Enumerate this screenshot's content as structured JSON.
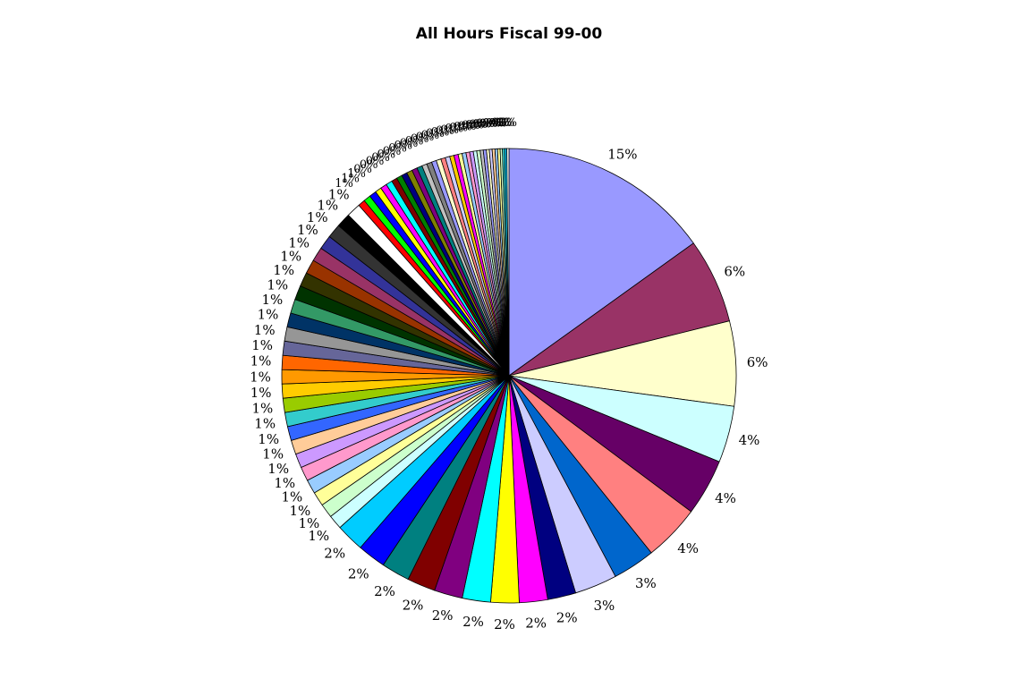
{
  "chart_data": {
    "type": "pie",
    "title": "All Hours Fiscal 99-00",
    "legend": "none",
    "slices": [
      {
        "value": 15,
        "label": "15%",
        "color": "#9999ff"
      },
      {
        "value": 6,
        "label": "6%",
        "color": "#993366"
      },
      {
        "value": 6,
        "label": "6%",
        "color": "#ffffcc"
      },
      {
        "value": 4,
        "label": "4%",
        "color": "#ccffff"
      },
      {
        "value": 4,
        "label": "4%",
        "color": "#660066"
      },
      {
        "value": 4,
        "label": "4%",
        "color": "#ff8080"
      },
      {
        "value": 3,
        "label": "3%",
        "color": "#0066cc"
      },
      {
        "value": 3,
        "label": "3%",
        "color": "#ccccff"
      },
      {
        "value": 2,
        "label": "2%",
        "color": "#000080"
      },
      {
        "value": 2,
        "label": "2%",
        "color": "#ff00ff"
      },
      {
        "value": 2,
        "label": "2%",
        "color": "#ffff00"
      },
      {
        "value": 2,
        "label": "2%",
        "color": "#00ffff"
      },
      {
        "value": 2,
        "label": "2%",
        "color": "#800080"
      },
      {
        "value": 2,
        "label": "2%",
        "color": "#800000"
      },
      {
        "value": 2,
        "label": "2%",
        "color": "#008080"
      },
      {
        "value": 2,
        "label": "2%",
        "color": "#0000ff"
      },
      {
        "value": 2,
        "label": "2%",
        "color": "#00ccff"
      },
      {
        "value": 1,
        "label": "1%",
        "color": "#ccffff"
      },
      {
        "value": 1,
        "label": "1%",
        "color": "#ccffcc"
      },
      {
        "value": 1,
        "label": "1%",
        "color": "#ffff99"
      },
      {
        "value": 1,
        "label": "1%",
        "color": "#99ccff"
      },
      {
        "value": 1,
        "label": "1%",
        "color": "#ff99cc"
      },
      {
        "value": 1,
        "label": "1%",
        "color": "#cc99ff"
      },
      {
        "value": 1,
        "label": "1%",
        "color": "#ffcc99"
      },
      {
        "value": 1,
        "label": "1%",
        "color": "#3366ff"
      },
      {
        "value": 1,
        "label": "1%",
        "color": "#33cccc"
      },
      {
        "value": 1,
        "label": "1%",
        "color": "#99cc00"
      },
      {
        "value": 1,
        "label": "1%",
        "color": "#ffcc00"
      },
      {
        "value": 1,
        "label": "1%",
        "color": "#ff9900"
      },
      {
        "value": 1,
        "label": "1%",
        "color": "#ff6600"
      },
      {
        "value": 1,
        "label": "1%",
        "color": "#666699"
      },
      {
        "value": 1,
        "label": "1%",
        "color": "#969696"
      },
      {
        "value": 1,
        "label": "1%",
        "color": "#003366"
      },
      {
        "value": 1,
        "label": "1%",
        "color": "#339966"
      },
      {
        "value": 1,
        "label": "1%",
        "color": "#003300"
      },
      {
        "value": 1,
        "label": "1%",
        "color": "#333300"
      },
      {
        "value": 1,
        "label": "1%",
        "color": "#993300"
      },
      {
        "value": 1,
        "label": "1%",
        "color": "#993366"
      },
      {
        "value": 1,
        "label": "1%",
        "color": "#333399"
      },
      {
        "value": 1,
        "label": "1%",
        "color": "#333333"
      },
      {
        "value": 1,
        "label": "1%",
        "color": "#000000"
      },
      {
        "value": 1,
        "label": "1%",
        "color": "#ffffff"
      },
      {
        "value": 0.5,
        "label": "1%",
        "color": "#ff0000"
      },
      {
        "value": 0.5,
        "label": "1%",
        "color": "#00ff00"
      },
      {
        "value": 0.5,
        "label": "1%",
        "color": "#0000ff"
      },
      {
        "value": 0.45,
        "label": "0%",
        "color": "#ffff00"
      },
      {
        "value": 0.45,
        "label": "0%",
        "color": "#ff00ff"
      },
      {
        "value": 0.45,
        "label": "0%",
        "color": "#00ffff"
      },
      {
        "value": 0.4,
        "label": "0%",
        "color": "#800000"
      },
      {
        "value": 0.4,
        "label": "0%",
        "color": "#008000"
      },
      {
        "value": 0.4,
        "label": "0%",
        "color": "#000080"
      },
      {
        "value": 0.4,
        "label": "0%",
        "color": "#808000"
      },
      {
        "value": 0.38,
        "label": "0%",
        "color": "#800080"
      },
      {
        "value": 0.38,
        "label": "0%",
        "color": "#008080"
      },
      {
        "value": 0.36,
        "label": "0%",
        "color": "#c0c0c0"
      },
      {
        "value": 0.36,
        "label": "0%",
        "color": "#808080"
      },
      {
        "value": 0.34,
        "label": "0%",
        "color": "#9999ff"
      },
      {
        "value": 0.34,
        "label": "0%",
        "color": "#ffffcc"
      },
      {
        "value": 0.32,
        "label": "0%",
        "color": "#ff8080"
      },
      {
        "value": 0.32,
        "label": "0%",
        "color": "#ccccff"
      },
      {
        "value": 0.3,
        "label": "0%",
        "color": "#ffcc00"
      },
      {
        "value": 0.3,
        "label": "0%",
        "color": "#ff00ff"
      },
      {
        "value": 0.28,
        "label": "0%",
        "color": "#ffff99"
      },
      {
        "value": 0.28,
        "label": "0%",
        "color": "#99ccff"
      },
      {
        "value": 0.26,
        "label": "0%",
        "color": "#ff99cc"
      },
      {
        "value": 0.26,
        "label": "0%",
        "color": "#cc99ff"
      },
      {
        "value": 0.24,
        "label": "0%",
        "color": "#ccffff"
      },
      {
        "value": 0.24,
        "label": "0%",
        "color": "#ccffcc"
      },
      {
        "value": 0.22,
        "label": "0%",
        "color": "#c0c0c0"
      },
      {
        "value": 0.22,
        "label": "0%",
        "color": "#9999ff"
      },
      {
        "value": 0.2,
        "label": "0%",
        "color": "#ffffcc"
      },
      {
        "value": 0.2,
        "label": "0%",
        "color": "#ccccff"
      },
      {
        "value": 0.2,
        "label": "0%",
        "color": "#ffcc99"
      },
      {
        "value": 0.18,
        "label": "0%",
        "color": "#99ccff"
      },
      {
        "value": 0.18,
        "label": "0%",
        "color": "#ffff99"
      },
      {
        "value": 0.16,
        "label": "0%",
        "color": "#ccffcc"
      },
      {
        "value": 0.16,
        "label": "0%",
        "color": "#33cccc"
      },
      {
        "value": 0.15,
        "label": "0%",
        "color": "#00ccff"
      },
      {
        "value": 0.15,
        "label": "0%",
        "color": "#ffffff"
      }
    ]
  }
}
